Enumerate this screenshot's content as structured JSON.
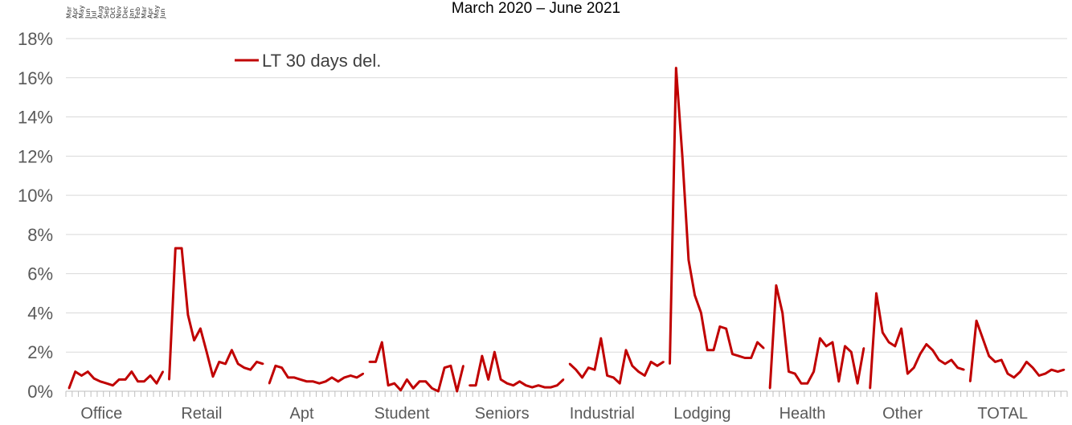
{
  "chart_data": {
    "type": "line",
    "title": "March 2020 – June 2021",
    "xlabel": "",
    "ylabel": "",
    "ylim": [
      0,
      18
    ],
    "y_ticks": [
      "0%",
      "2%",
      "4%",
      "6%",
      "8%",
      "10%",
      "12%",
      "14%",
      "16%",
      "18%"
    ],
    "grid": true,
    "legend": "top-left",
    "color": "#C00000",
    "months": [
      "Mar",
      "Apr",
      "May",
      "Jun",
      "Jul",
      "Aug",
      "Sep",
      "Oct",
      "Nov",
      "Dec",
      "Jan",
      "Feb",
      "Mar",
      "Apr",
      "May",
      "Jun"
    ],
    "series": [
      {
        "name": "LT 30 days del.",
        "groups": [
          {
            "category": "Office",
            "values": [
              0.15,
              1.0,
              0.8,
              1.0,
              0.65,
              0.5,
              0.4,
              0.3,
              0.6,
              0.6,
              1.0,
              0.5,
              0.5,
              0.8,
              0.4,
              1.0
            ]
          },
          {
            "category": "Retail",
            "values": [
              0.6,
              7.3,
              7.3,
              3.9,
              2.6,
              3.2,
              2.0,
              0.75,
              1.5,
              1.4,
              2.1,
              1.4,
              1.2,
              1.1,
              1.5,
              1.4
            ]
          },
          {
            "category": "Apt",
            "values": [
              0.4,
              1.3,
              1.2,
              0.7,
              0.7,
              0.6,
              0.5,
              0.5,
              0.4,
              0.5,
              0.7,
              0.5,
              0.7,
              0.8,
              0.7,
              0.9
            ]
          },
          {
            "category": "Student",
            "values": [
              1.5,
              1.5,
              2.5,
              0.3,
              0.4,
              0.05,
              0.6,
              0.15,
              0.5,
              0.5,
              0.15,
              0.0,
              1.2,
              1.3,
              0.0,
              1.3
            ]
          },
          {
            "category": "Seniors",
            "values": [
              0.3,
              0.3,
              1.8,
              0.6,
              2.0,
              0.6,
              0.4,
              0.3,
              0.5,
              0.3,
              0.2,
              0.3,
              0.2,
              0.2,
              0.3,
              0.6
            ]
          },
          {
            "category": "Industrial",
            "values": [
              1.4,
              1.1,
              0.7,
              1.2,
              1.1,
              2.7,
              0.8,
              0.7,
              0.4,
              2.1,
              1.3,
              1.0,
              0.8,
              1.5,
              1.3,
              1.5
            ]
          },
          {
            "category": "Lodging",
            "values": [
              1.4,
              16.5,
              12.0,
              6.7,
              4.9,
              4.0,
              2.1,
              2.1,
              3.3,
              3.2,
              1.9,
              1.8,
              1.7,
              1.7,
              2.5,
              2.2
            ]
          },
          {
            "category": "Health",
            "values": [
              0.15,
              5.4,
              4.0,
              1.0,
              0.9,
              0.4,
              0.4,
              1.0,
              2.7,
              2.3,
              2.5,
              0.5,
              2.3,
              2.0,
              0.4,
              2.2
            ]
          },
          {
            "category": "Other",
            "values": [
              0.15,
              5.0,
              3.0,
              2.5,
              2.3,
              3.2,
              0.9,
              1.2,
              1.9,
              2.4,
              2.1,
              1.6,
              1.4,
              1.6,
              1.2,
              1.1
            ]
          },
          {
            "category": "TOTAL",
            "values": [
              0.5,
              3.6,
              2.7,
              1.8,
              1.5,
              1.6,
              0.9,
              0.7,
              1.0,
              1.5,
              1.2,
              0.8,
              0.9,
              1.1,
              1.0,
              1.1
            ]
          }
        ]
      }
    ]
  }
}
